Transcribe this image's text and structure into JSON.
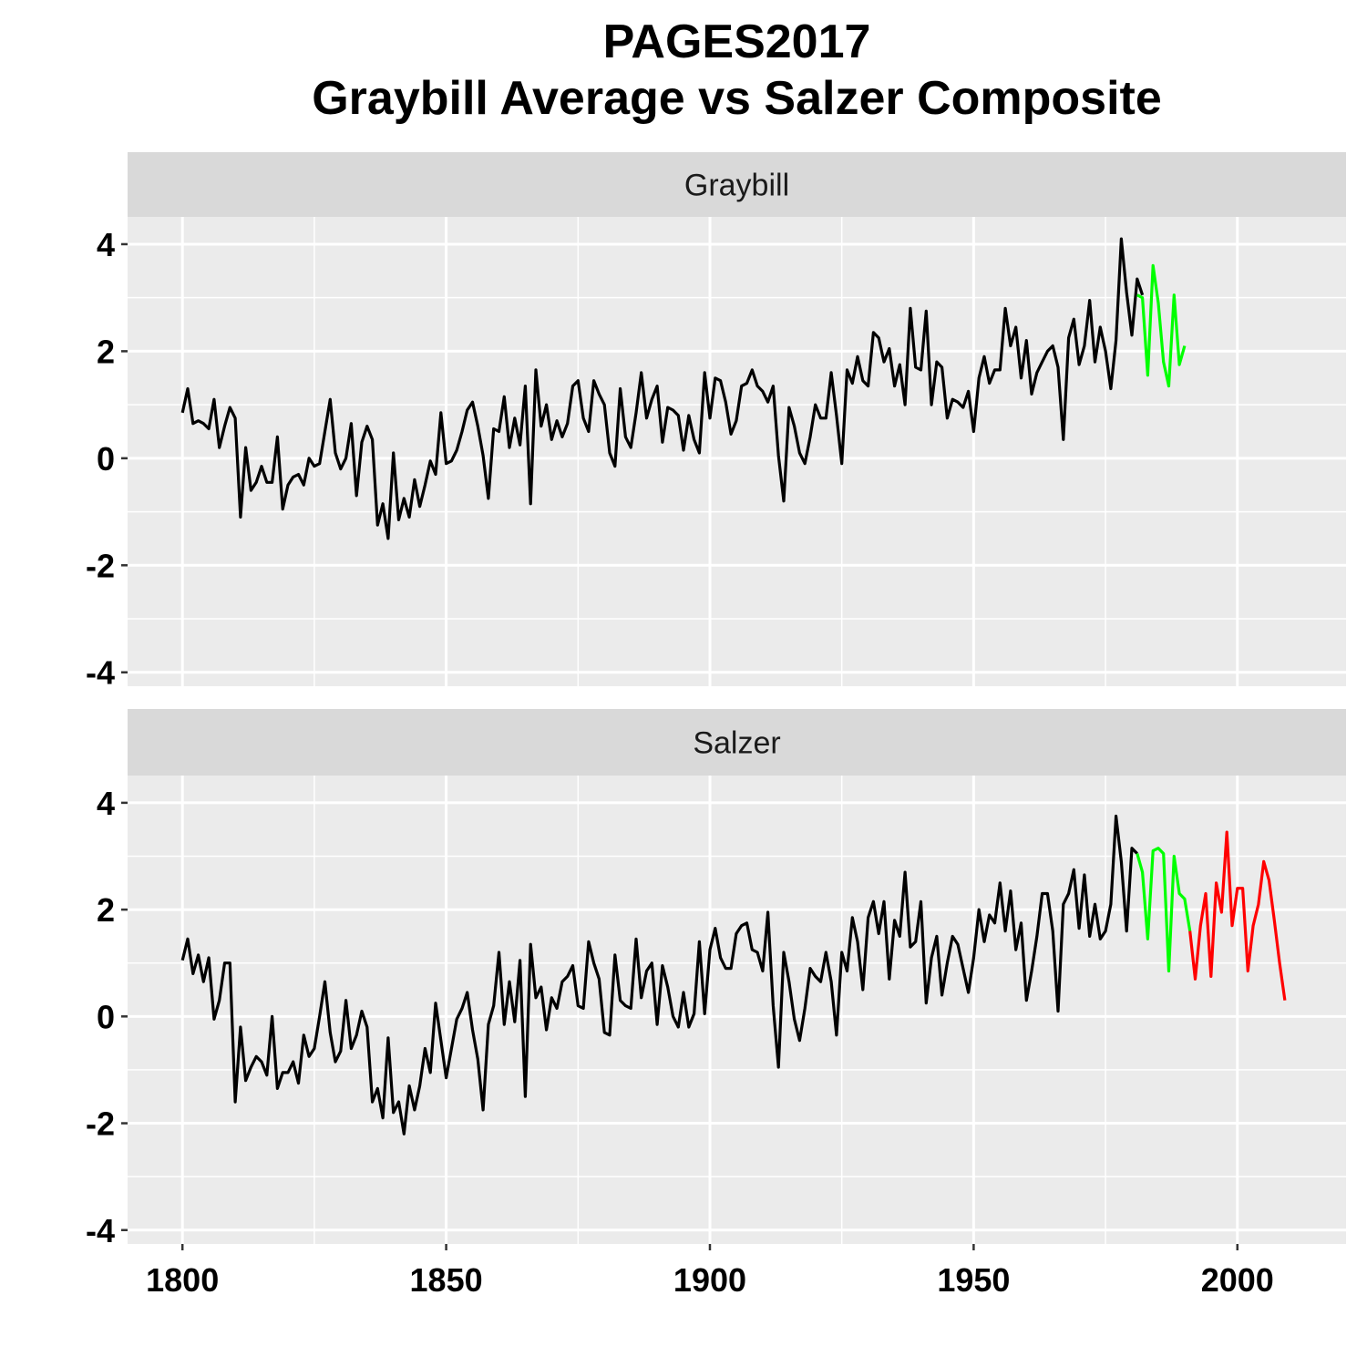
{
  "chart_data": {
    "type": "line",
    "title": "PAGES2017",
    "subtitle": "Graybill Average vs Salzer Composite",
    "xlabel": "",
    "ylabel": "",
    "xlim": [
      1789.6,
      2020.6
    ],
    "ylim": [
      -4.26,
      4.51
    ],
    "x_ticks": [
      "1800",
      "1850",
      "1900",
      "1950",
      "2000"
    ],
    "y_ticks": [
      "4",
      "2",
      "0",
      "-2",
      "-4"
    ],
    "grid": true,
    "colors": {
      "black": "#000000",
      "green": "#00FF00",
      "red": "#FF0000",
      "panel_bg": "#EBEBEB",
      "strip_bg": "#D9D9D9"
    },
    "panels": [
      {
        "strip": "Graybill",
        "segments": [
          {
            "color": "#000000",
            "start_year": 1800,
            "values": [
              0.85,
              1.3,
              0.65,
              0.7,
              0.65,
              0.55,
              1.1,
              0.2,
              0.6,
              0.95,
              0.75,
              -1.1,
              0.2,
              -0.6,
              -0.45,
              -0.15,
              -0.45,
              -0.45,
              0.4,
              -0.95,
              -0.5,
              -0.35,
              -0.3,
              -0.5,
              0.0,
              -0.15,
              -0.1,
              0.5,
              1.1,
              0.1,
              -0.2,
              0.0,
              0.65,
              -0.7,
              0.3,
              0.6,
              0.35,
              -1.25,
              -0.85,
              -1.5,
              0.1,
              -1.15,
              -0.75,
              -1.1,
              -0.4,
              -0.9,
              -0.5,
              -0.05,
              -0.3,
              0.85,
              -0.1,
              -0.05,
              0.15,
              0.5,
              0.9,
              1.05,
              0.6,
              0.05,
              -0.75,
              0.55,
              0.5,
              1.15,
              0.2,
              0.75,
              0.25,
              1.35,
              -0.85,
              1.65,
              0.6,
              1.0,
              0.35,
              0.7,
              0.4,
              0.65,
              1.35,
              1.45,
              0.75,
              0.5,
              1.45,
              1.2,
              1.0,
              0.1,
              -0.15,
              1.3,
              0.4,
              0.2,
              0.85,
              1.6,
              0.75,
              1.1,
              1.35,
              0.3,
              0.95,
              0.9,
              0.8,
              0.15,
              0.8,
              0.35,
              0.1,
              1.6,
              0.75,
              1.5,
              1.45,
              1.05,
              0.45,
              0.7,
              1.35,
              1.4,
              1.65,
              1.35,
              1.25,
              1.05,
              1.35,
              0.05,
              -0.8,
              0.95,
              0.6,
              0.1,
              -0.1,
              0.4,
              1.0,
              0.75,
              0.75,
              1.6,
              0.8,
              -0.1,
              1.65,
              1.4,
              1.9,
              1.45,
              1.35,
              2.35,
              2.25,
              1.8,
              2.05,
              1.35,
              1.75,
              1.0,
              2.8,
              1.7,
              1.65,
              2.75,
              1.0,
              1.8,
              1.7,
              0.75,
              1.1,
              1.05,
              0.95,
              1.25,
              0.5,
              1.5,
              1.9,
              1.4,
              1.65,
              1.65,
              2.8,
              2.1,
              2.45,
              1.5,
              2.2,
              1.2,
              1.6,
              1.8,
              2.0,
              2.1,
              1.7,
              0.35,
              2.25,
              2.6,
              1.75,
              2.1,
              2.95,
              1.8,
              2.45,
              2.0,
              1.3,
              2.2,
              4.1,
              3.1,
              2.3,
              3.35,
              3.05
            ]
          },
          {
            "color": "#00FF00",
            "start_year": 1981,
            "values": [
              3.05,
              3.0,
              1.55,
              3.6,
              2.9,
              1.8,
              1.35,
              3.05,
              1.75,
              2.1
            ]
          }
        ]
      },
      {
        "strip": "Salzer",
        "segments": [
          {
            "color": "#000000",
            "start_year": 1800,
            "values": [
              1.05,
              1.45,
              0.8,
              1.15,
              0.65,
              1.1,
              -0.05,
              0.3,
              1.0,
              1.0,
              -1.6,
              -0.2,
              -1.2,
              -0.95,
              -0.75,
              -0.85,
              -1.1,
              0.0,
              -1.35,
              -1.05,
              -1.05,
              -0.85,
              -1.25,
              -0.35,
              -0.75,
              -0.6,
              0.0,
              0.65,
              -0.3,
              -0.85,
              -0.65,
              0.3,
              -0.6,
              -0.35,
              0.1,
              -0.2,
              -1.6,
              -1.35,
              -1.9,
              -0.4,
              -1.8,
              -1.6,
              -2.2,
              -1.3,
              -1.75,
              -1.3,
              -0.6,
              -1.05,
              0.25,
              -0.45,
              -1.15,
              -0.6,
              -0.05,
              0.15,
              0.45,
              -0.25,
              -0.8,
              -1.75,
              -0.15,
              0.2,
              1.2,
              -0.15,
              0.65,
              -0.1,
              1.05,
              -1.5,
              1.35,
              0.35,
              0.55,
              -0.25,
              0.35,
              0.15,
              0.65,
              0.75,
              0.95,
              0.2,
              0.15,
              1.4,
              1.0,
              0.7,
              -0.3,
              -0.35,
              1.15,
              0.3,
              0.2,
              0.15,
              1.45,
              0.35,
              0.85,
              1.0,
              -0.15,
              0.95,
              0.55,
              0.0,
              -0.2,
              0.45,
              -0.2,
              0.05,
              1.4,
              0.05,
              1.25,
              1.65,
              1.1,
              0.9,
              0.9,
              1.55,
              1.7,
              1.75,
              1.25,
              1.2,
              0.85,
              1.95,
              0.2,
              -0.95,
              1.2,
              0.65,
              -0.05,
              -0.45,
              0.15,
              0.9,
              0.75,
              0.65,
              1.2,
              0.65,
              -0.35,
              1.2,
              0.85,
              1.85,
              1.4,
              0.5,
              1.85,
              2.15,
              1.55,
              2.15,
              0.7,
              1.8,
              1.5,
              2.7,
              1.3,
              1.4,
              2.15,
              0.25,
              1.1,
              1.5,
              0.4,
              1.0,
              1.5,
              1.35,
              0.9,
              0.45,
              1.1,
              2.0,
              1.4,
              1.9,
              1.75,
              2.5,
              1.6,
              2.35,
              1.25,
              1.75,
              0.3,
              0.85,
              1.5,
              2.3,
              2.3,
              1.6,
              0.1,
              2.1,
              2.3,
              2.75,
              1.65,
              2.65,
              1.5,
              2.1,
              1.45,
              1.6,
              2.1,
              3.75,
              2.9,
              1.6,
              3.15,
              3.05
            ]
          },
          {
            "color": "#00FF00",
            "start_year": 1981,
            "values": [
              3.05,
              2.7,
              1.45,
              3.1,
              3.15,
              3.05,
              0.85,
              3.0,
              2.3,
              2.2,
              1.6
            ]
          },
          {
            "color": "#FF0000",
            "start_year": 1991,
            "values": [
              1.6,
              0.7,
              1.7,
              2.3,
              0.75,
              2.5,
              1.95,
              3.45,
              1.7,
              2.4,
              2.4,
              0.85,
              1.7,
              2.1,
              2.9,
              2.55,
              1.8,
              1.0,
              0.3
            ]
          }
        ]
      }
    ]
  }
}
